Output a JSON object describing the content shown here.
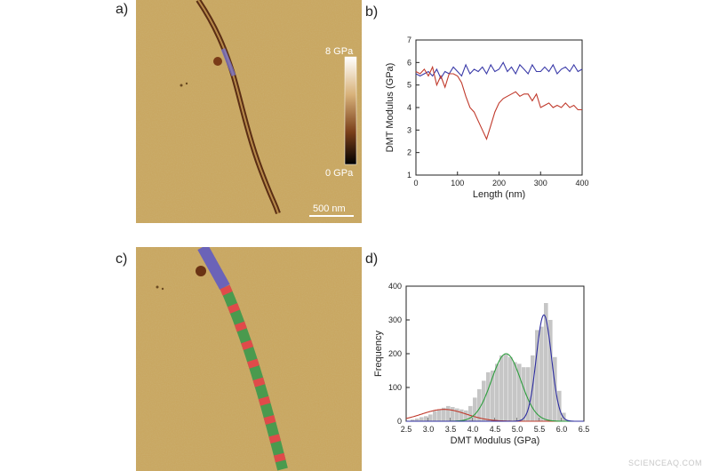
{
  "figure": {
    "labels": {
      "a": "a)",
      "b": "b)",
      "c": "c)",
      "d": "d)"
    },
    "panel_a": {
      "colorbar_max": "8 GPa",
      "colorbar_min": "0 GPa",
      "scalebar": "500 nm"
    },
    "watermark": "SCIENCEAQ.COM"
  },
  "chart_data": [
    {
      "type": "line",
      "xlabel": "Length (nm)",
      "ylabel": "DMT Modulus (GPa)",
      "xlim": [
        0,
        400
      ],
      "ylim": [
        1,
        7
      ],
      "xticks": [
        0,
        100,
        200,
        300,
        400
      ],
      "yticks": [
        1,
        2,
        3,
        4,
        5,
        6,
        7
      ],
      "grid": false,
      "series": [
        {
          "color": "#3a3aa8",
          "x": [
            0,
            10,
            20,
            30,
            40,
            50,
            60,
            70,
            80,
            90,
            100,
            110,
            120,
            130,
            140,
            150,
            160,
            170,
            180,
            190,
            200,
            210,
            220,
            230,
            240,
            250,
            260,
            270,
            280,
            290,
            300,
            310,
            320,
            330,
            340,
            350,
            360,
            370,
            380,
            390,
            400
          ],
          "y": [
            5.5,
            5.4,
            5.5,
            5.6,
            5.4,
            5.7,
            5.3,
            5.6,
            5.5,
            5.8,
            5.6,
            5.4,
            5.9,
            5.5,
            5.7,
            5.6,
            5.8,
            5.5,
            5.9,
            5.6,
            5.7,
            6.0,
            5.6,
            5.8,
            5.5,
            5.9,
            5.7,
            5.5,
            5.9,
            5.6,
            5.6,
            5.8,
            5.6,
            5.9,
            5.5,
            5.7,
            5.8,
            5.6,
            5.9,
            5.6,
            5.7
          ]
        },
        {
          "color": "#c0392b",
          "x": [
            0,
            10,
            20,
            30,
            40,
            50,
            60,
            70,
            80,
            90,
            100,
            110,
            120,
            130,
            140,
            150,
            160,
            170,
            180,
            190,
            200,
            210,
            220,
            230,
            240,
            250,
            260,
            270,
            280,
            290,
            300,
            310,
            320,
            330,
            340,
            350,
            360,
            370,
            380,
            390,
            400
          ],
          "y": [
            5.6,
            5.5,
            5.7,
            5.4,
            5.8,
            5.0,
            5.4,
            4.9,
            5.5,
            5.5,
            5.4,
            5.1,
            4.5,
            4.0,
            3.8,
            3.4,
            3.0,
            2.6,
            3.2,
            3.8,
            4.2,
            4.4,
            4.5,
            4.6,
            4.7,
            4.5,
            4.6,
            4.6,
            4.3,
            4.6,
            4.0,
            4.1,
            4.2,
            4.0,
            4.1,
            4.0,
            4.2,
            4.0,
            4.1,
            3.9,
            3.9
          ]
        }
      ]
    },
    {
      "type": "bar",
      "xlabel": "DMT Modulus (GPa)",
      "ylabel": "Frequency",
      "xlim": [
        2.5,
        6.5
      ],
      "ylim": [
        0,
        400
      ],
      "xticks": [
        "2.5",
        "3.0",
        "3.5",
        "4.0",
        "4.5",
        "5.0",
        "5.5",
        "6.0",
        "6.5"
      ],
      "yticks": [
        0,
        100,
        200,
        300,
        400
      ],
      "grid": false,
      "bin_width": 0.1,
      "bins_start": [
        2.6,
        2.7,
        2.8,
        2.9,
        3.0,
        3.1,
        3.2,
        3.3,
        3.4,
        3.5,
        3.6,
        3.7,
        3.8,
        3.9,
        4.0,
        4.1,
        4.2,
        4.3,
        4.4,
        4.5,
        4.6,
        4.7,
        4.8,
        4.9,
        5.0,
        5.1,
        5.2,
        5.3,
        5.4,
        5.5,
        5.6,
        5.7,
        5.8,
        5.9,
        6.0
      ],
      "values": [
        5,
        8,
        12,
        15,
        20,
        30,
        35,
        40,
        45,
        42,
        38,
        35,
        32,
        45,
        70,
        95,
        120,
        145,
        150,
        170,
        195,
        200,
        190,
        175,
        170,
        160,
        160,
        195,
        270,
        280,
        350,
        300,
        190,
        90,
        25
      ],
      "bar_color": "#c6c6c6",
      "fit_curves": [
        {
          "color": "#c0392b",
          "center": 3.35,
          "sigma": 0.5,
          "amplitude": 35
        },
        {
          "color": "#2e9e3e",
          "center": 4.75,
          "sigma": 0.33,
          "amplitude": 200
        },
        {
          "color": "#2d2da0",
          "center": 5.6,
          "sigma": 0.17,
          "amplitude": 315
        }
      ]
    }
  ]
}
